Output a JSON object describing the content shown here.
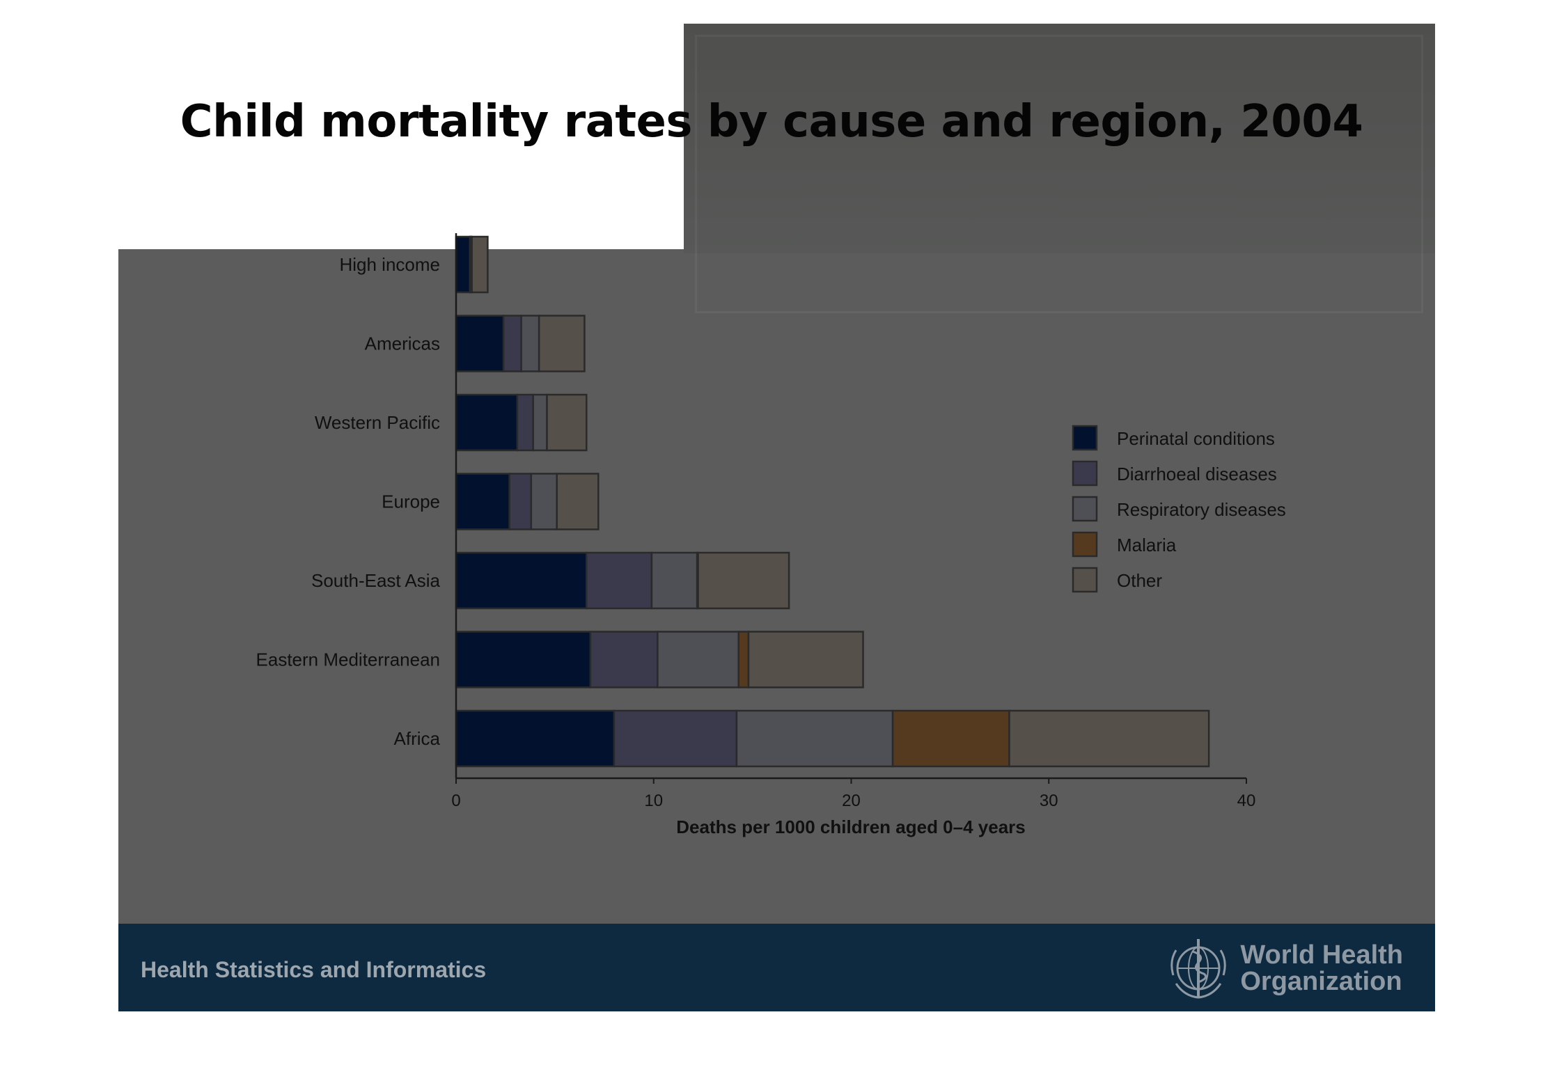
{
  "slide": {
    "title": "Child mortality rates by cause and region, 2004",
    "footer_text": "Health Statistics and Informatics",
    "logo_line1": "World Health",
    "logo_line2": "Organization"
  },
  "colors": {
    "Perinatal conditions": "#02122e",
    "Diarrhoeal diseases": "#3a3a4c",
    "Respiratory diseases": "#4f4f56",
    "Malaria": "#563a20",
    "Other": "#56504a",
    "outline": "#2a2a2a"
  },
  "chart_data": {
    "type": "bar",
    "orientation": "horizontal",
    "stacked": true,
    "categories": [
      "High income",
      "Americas",
      "Western Pacific",
      "Europe",
      "South-East Asia",
      "Eastern Mediterranean",
      "Africa"
    ],
    "series": [
      {
        "name": "Perinatal conditions",
        "values": [
          0.7,
          2.4,
          3.1,
          2.7,
          6.6,
          6.8,
          8.0
        ]
      },
      {
        "name": "Diarrhoeal diseases",
        "values": [
          0.05,
          0.9,
          0.8,
          1.1,
          3.3,
          3.4,
          6.2
        ]
      },
      {
        "name": "Respiratory diseases",
        "values": [
          0.05,
          0.9,
          0.7,
          1.3,
          2.3,
          4.1,
          7.9
        ]
      },
      {
        "name": "Malaria",
        "values": [
          0,
          0,
          0,
          0,
          0.05,
          0.5,
          5.9
        ]
      },
      {
        "name": "Other",
        "values": [
          0.8,
          2.3,
          2.0,
          2.1,
          4.6,
          5.8,
          10.1
        ]
      }
    ],
    "xlabel": "Deaths per 1000 children aged 0–4 years",
    "xlim": [
      0,
      40
    ],
    "xticks": [
      0,
      10,
      20,
      30,
      40
    ],
    "legend_position": "right",
    "grid": false
  }
}
